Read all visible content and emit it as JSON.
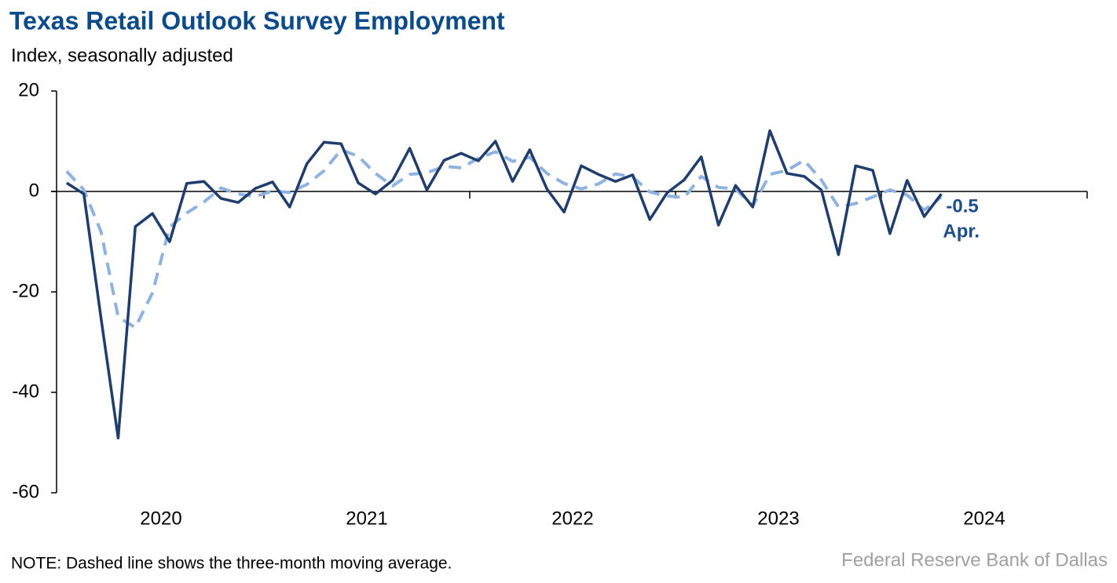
{
  "chart_data": {
    "type": "line",
    "title": "Texas Retail Outlook Survey Employment",
    "subtitle": "Index, seasonally adjusted",
    "note": "NOTE: Dashed line shows the three-month moving average.",
    "source": "Federal Reserve Bank of Dallas",
    "annotations": [
      "-0.5",
      "Apr."
    ],
    "x": [
      "2020-01",
      "2020-02",
      "2020-03",
      "2020-04",
      "2020-05",
      "2020-06",
      "2020-07",
      "2020-08",
      "2020-09",
      "2020-10",
      "2020-11",
      "2020-12",
      "2021-01",
      "2021-02",
      "2021-03",
      "2021-04",
      "2021-05",
      "2021-06",
      "2021-07",
      "2021-08",
      "2021-09",
      "2021-10",
      "2021-11",
      "2021-12",
      "2022-01",
      "2022-02",
      "2022-03",
      "2022-04",
      "2022-05",
      "2022-06",
      "2022-07",
      "2022-08",
      "2022-09",
      "2022-10",
      "2022-11",
      "2022-12",
      "2023-01",
      "2023-02",
      "2023-03",
      "2023-04",
      "2023-05",
      "2023-06",
      "2023-07",
      "2023-08",
      "2023-09",
      "2023-10",
      "2023-11",
      "2023-12",
      "2024-01",
      "2024-02",
      "2024-03",
      "2024-04"
    ],
    "xlim": [
      "2020-01",
      "2024-12"
    ],
    "xticks": [
      "2020",
      "2021",
      "2022",
      "2023",
      "2024"
    ],
    "ylim": [
      -60,
      20
    ],
    "yticks": [
      -60,
      -40,
      -20,
      0,
      20
    ],
    "series": [
      {
        "style": "solid",
        "color": "#1f3d6d",
        "values": [
          1.7,
          -0.5,
          -25.2,
          -49.1,
          -7.0,
          -4.4,
          -10.0,
          1.6,
          2.0,
          -1.4,
          -2.2,
          0.6,
          1.9,
          -3.1,
          5.5,
          9.8,
          9.5,
          1.7,
          -0.5,
          2.2,
          8.6,
          0.3,
          6.2,
          7.6,
          6.1,
          10.0,
          2.0,
          8.3,
          0.5,
          -4.1,
          5.1,
          3.4,
          2.0,
          3.3,
          -5.6,
          -0.3,
          2.3,
          6.9,
          -6.7,
          1.2,
          -3.1,
          12.1,
          3.6,
          3.0,
          0.3,
          -12.6,
          5.1,
          4.2,
          -8.4,
          2.2,
          -5.0,
          -0.5
        ]
      },
      {
        "style": "dashed",
        "color": "#8fb3e1",
        "values": [
          4.0,
          0.3,
          -8.0,
          -25.0,
          -27.1,
          -20.2,
          -7.1,
          -4.3,
          -2.1,
          0.7,
          -0.5,
          -1.0,
          0.1,
          -0.2,
          1.4,
          4.1,
          8.3,
          7.0,
          3.6,
          1.1,
          3.4,
          3.7,
          5.0,
          4.7,
          6.6,
          7.9,
          6.0,
          6.8,
          3.6,
          1.6,
          0.5,
          1.5,
          3.5,
          2.9,
          -0.1,
          -0.9,
          -1.2,
          3.0,
          0.8,
          0.5,
          -2.9,
          3.4,
          4.2,
          6.2,
          2.3,
          -3.1,
          -2.4,
          -1.1,
          0.3,
          -0.7,
          -3.7,
          -1.1
        ]
      }
    ]
  }
}
